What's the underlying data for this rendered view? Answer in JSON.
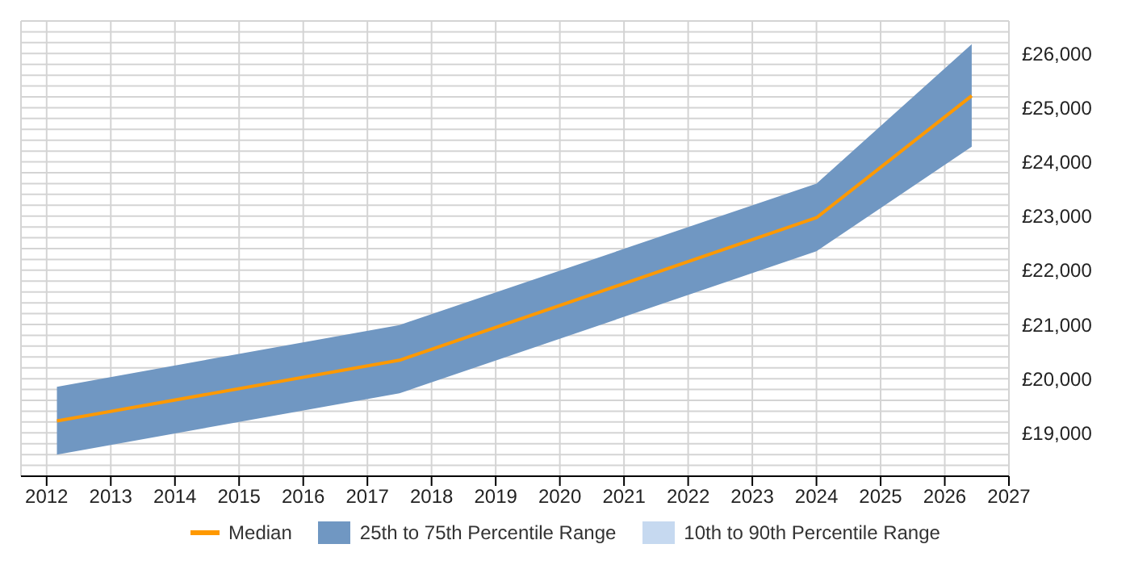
{
  "chart_data": {
    "type": "line",
    "x": [
      2012.16,
      2017.5,
      2024.0,
      2026.42
    ],
    "series": [
      {
        "name": "Median",
        "color": "#ff9900",
        "values": [
          19220,
          20340,
          22970,
          25220
        ]
      },
      {
        "name": "25th to 75th Percentile Range",
        "type": "area",
        "color": "#7097c2",
        "values": [
          null,
          null,
          null,
          null
        ],
        "lower": [
          18600,
          19730,
          22350,
          24280
        ],
        "upper": [
          19850,
          20990,
          23600,
          26170
        ]
      },
      {
        "name": "10th to 90th Percentile Range",
        "type": "area",
        "color": "#c6d9f0",
        "values": [
          null,
          null,
          null,
          null
        ]
      }
    ],
    "xlim": [
      2011.6,
      2027
    ],
    "xticks": [
      2012,
      2013,
      2014,
      2015,
      2016,
      2017,
      2018,
      2019,
      2020,
      2021,
      2022,
      2023,
      2024,
      2025,
      2026,
      2027
    ],
    "ylim": [
      18200,
      26600
    ],
    "yticks": [
      {
        "value": 18200,
        "label": null
      },
      {
        "value": 18400,
        "label": null
      },
      {
        "value": 18600,
        "label": null
      },
      {
        "value": 18800,
        "label": null
      },
      {
        "value": 19000,
        "label": "£19,000"
      },
      {
        "value": 19200,
        "label": null
      },
      {
        "value": 19400,
        "label": null
      },
      {
        "value": 19600,
        "label": null
      },
      {
        "value": 19800,
        "label": null
      },
      {
        "value": 20000,
        "label": "£20,000"
      },
      {
        "value": 20200,
        "label": null
      },
      {
        "value": 20400,
        "label": null
      },
      {
        "value": 20600,
        "label": null
      },
      {
        "value": 20800,
        "label": null
      },
      {
        "value": 21000,
        "label": "£21,000"
      },
      {
        "value": 21200,
        "label": null
      },
      {
        "value": 21400,
        "label": null
      },
      {
        "value": 21600,
        "label": null
      },
      {
        "value": 21800,
        "label": null
      },
      {
        "value": 22000,
        "label": "£22,000"
      },
      {
        "value": 22200,
        "label": null
      },
      {
        "value": 22400,
        "label": null
      },
      {
        "value": 22600,
        "label": null
      },
      {
        "value": 22800,
        "label": null
      },
      {
        "value": 23000,
        "label": "£23,000"
      },
      {
        "value": 23200,
        "label": null
      },
      {
        "value": 23400,
        "label": null
      },
      {
        "value": 23600,
        "label": null
      },
      {
        "value": 23800,
        "label": null
      },
      {
        "value": 24000,
        "label": "£24,000"
      },
      {
        "value": 24200,
        "label": null
      },
      {
        "value": 24400,
        "label": null
      },
      {
        "value": 24600,
        "label": null
      },
      {
        "value": 24800,
        "label": null
      },
      {
        "value": 25000,
        "label": "£25,000"
      },
      {
        "value": 25200,
        "label": null
      },
      {
        "value": 25400,
        "label": null
      },
      {
        "value": 25600,
        "label": null
      },
      {
        "value": 25800,
        "label": null
      },
      {
        "value": 26000,
        "label": "£26,000"
      },
      {
        "value": 26200,
        "label": null
      },
      {
        "value": 26400,
        "label": null
      },
      {
        "value": 26600,
        "label": null
      }
    ],
    "grid": true,
    "legend": "bottom",
    "marker": "none"
  }
}
